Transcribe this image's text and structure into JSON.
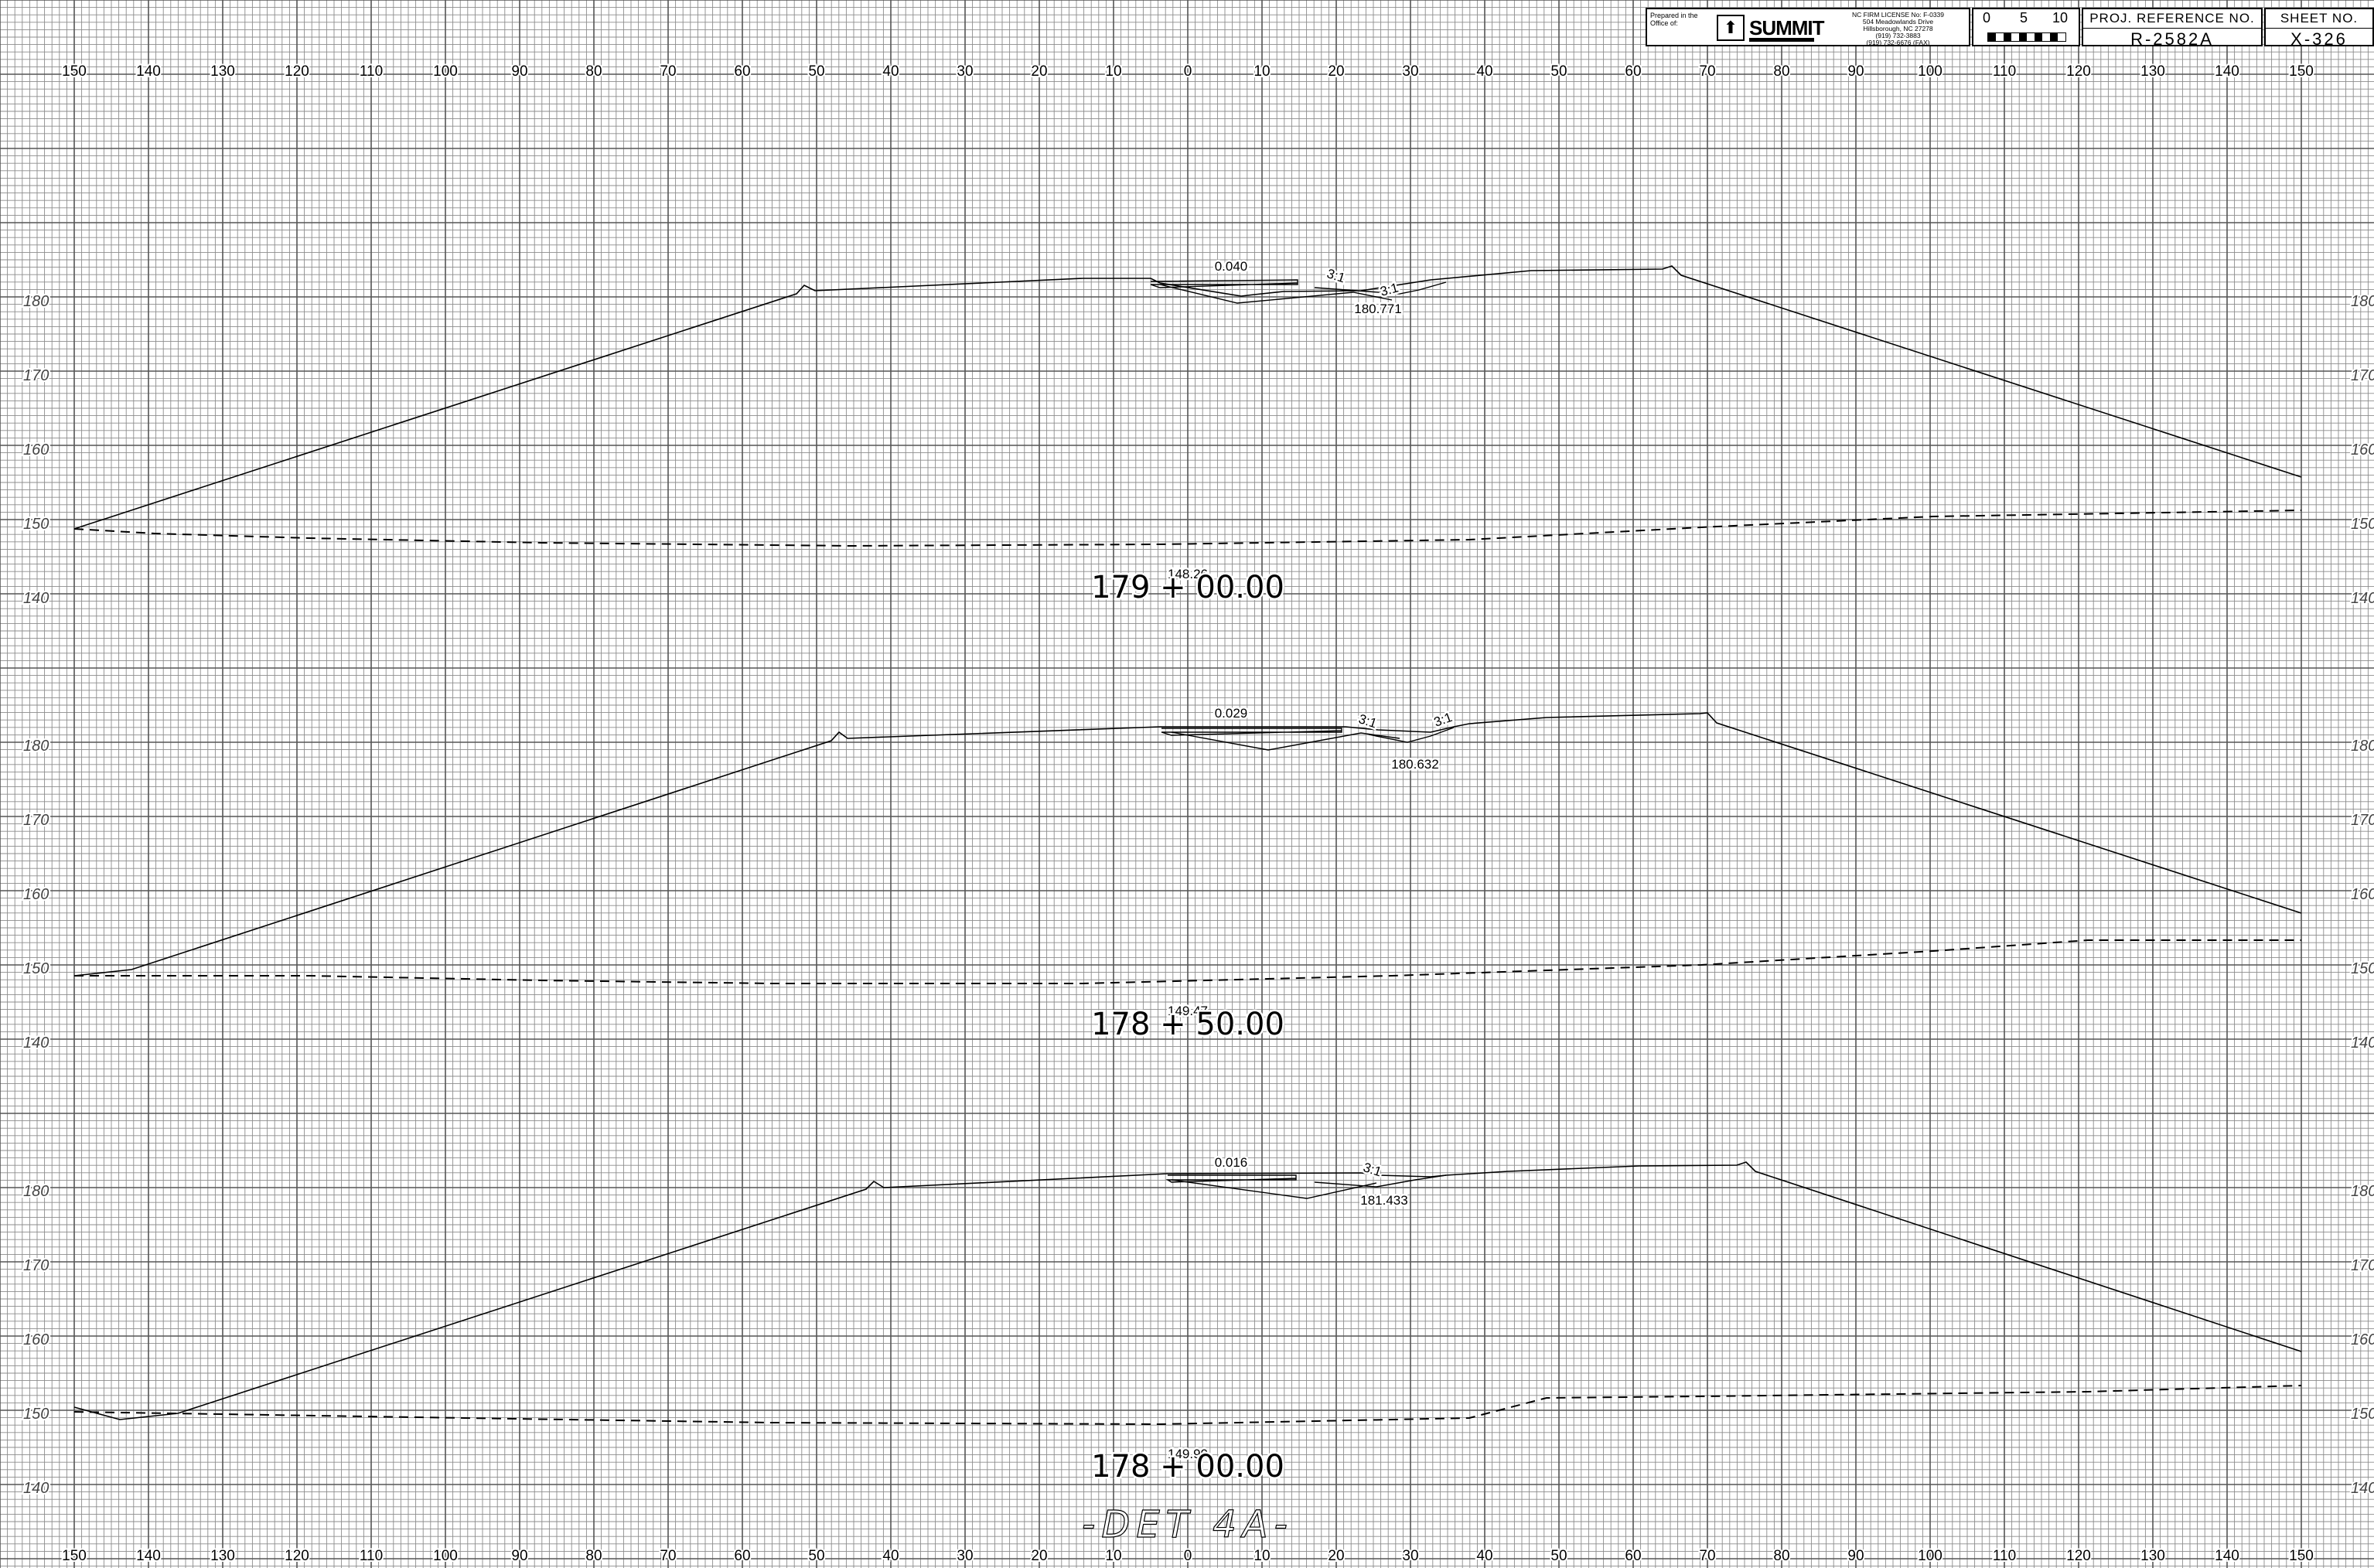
{
  "title_block": {
    "prepared_in_office_of": "Prepared in the Office of:",
    "firm_name": "SUMMIT",
    "license": "NC FIRM LICENSE No: F-0339",
    "address_1": "504 Meadowlands Drive",
    "address_2": "Hillsborough, NC 27278",
    "phone": "(919) 732-3883",
    "fax": "(919) 732-6676 (FAX)",
    "scale_labels": [
      "0",
      "5",
      "10"
    ],
    "proj_ref_label": "PROJ. REFERENCE NO.",
    "proj_ref_value": "R-2582A",
    "sheet_no_label": "SHEET NO.",
    "sheet_no_value": "X-326"
  },
  "offset_axis_labels": [
    "150",
    "140",
    "130",
    "120",
    "110",
    "100",
    "90",
    "80",
    "70",
    "60",
    "50",
    "40",
    "30",
    "20",
    "10",
    "0",
    "10",
    "20",
    "30",
    "40",
    "50",
    "60",
    "70",
    "80",
    "90",
    "100",
    "110",
    "120",
    "130",
    "140",
    "150"
  ],
  "alignment_label": "-DET 4A-",
  "sections": [
    {
      "station": "179 + 00.00",
      "ground_elevation": "148.26",
      "design_value": "0.040",
      "ditch_elevation": "180.771",
      "slope_labels": [
        "3:1",
        "3:1"
      ],
      "elevation_labels": [
        "180",
        "170",
        "160",
        "150",
        "140"
      ]
    },
    {
      "station": "178 + 50.00",
      "ground_elevation": "149.47",
      "design_value": "0.029",
      "ditch_elevation": "180.632",
      "slope_labels": [
        "3:1",
        "3:1"
      ],
      "elevation_labels": [
        "180",
        "170",
        "160",
        "150",
        "140"
      ]
    },
    {
      "station": "178 + 00.00",
      "ground_elevation": "149.90",
      "design_value": "0.016",
      "ditch_elevation": "181.433",
      "slope_labels": [
        "3:1"
      ],
      "elevation_labels": [
        "180",
        "170",
        "160",
        "150",
        "140"
      ]
    }
  ],
  "colors": {
    "grid": "#8c8c8c",
    "grid_major": "#555555",
    "line": "#000000",
    "background": "#ffffff"
  }
}
